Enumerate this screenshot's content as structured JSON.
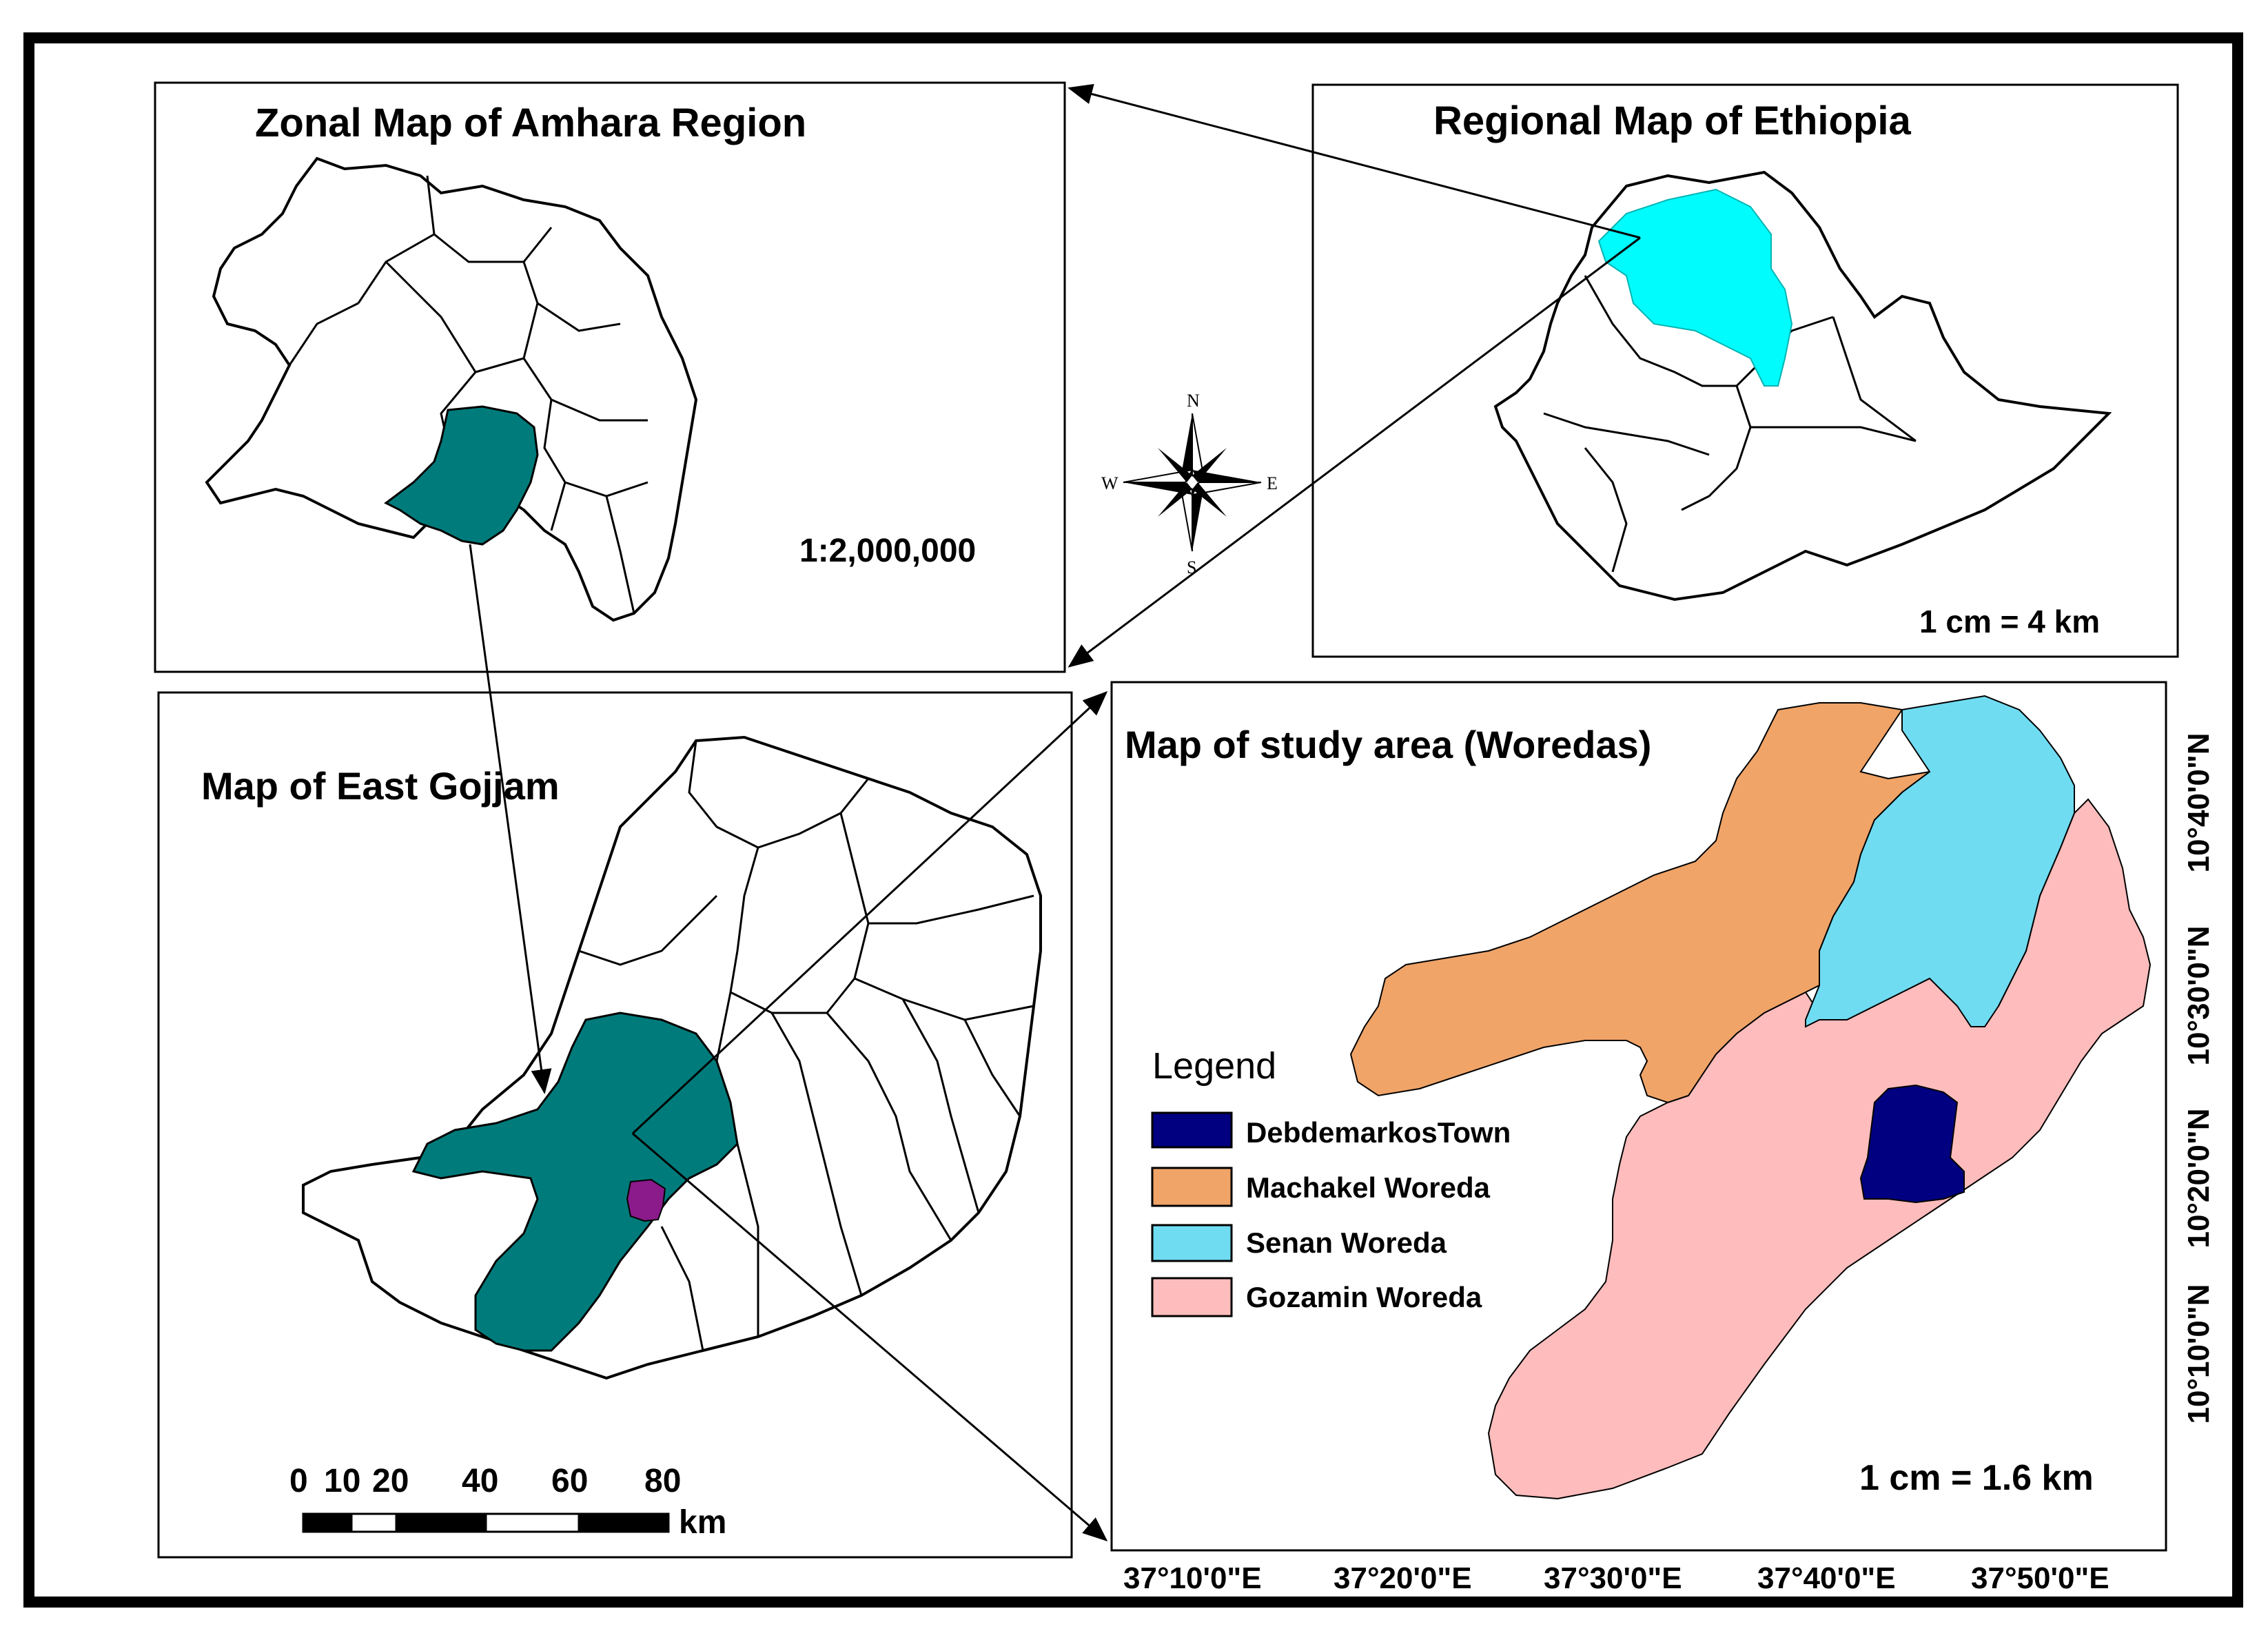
{
  "panels": {
    "zonal": {
      "title": "Zonal Map of Amhara Region",
      "scale": "1:2,000,000"
    },
    "regional": {
      "title": "Regional Map of Ethiopia",
      "scale": "1 cm = 4 km"
    },
    "east_gojjam": {
      "title": "Map of East Gojjam",
      "scalebar_labels": [
        "0",
        "10",
        "20",
        "40",
        "60",
        "80"
      ],
      "scalebar_unit": "km"
    },
    "study": {
      "title": "Map of study area (Woredas)",
      "scale": "1 cm = 1.6 km",
      "lon_ticks": [
        "37°10'0\"E",
        "37°20'0\"E",
        "37°30'0\"E",
        "37°40'0\"E",
        "37°50'0\"E"
      ],
      "lat_ticks": [
        "10°40'0\"N",
        "10°30'0\"N",
        "10°20'0\"N",
        "10°10'0\"N"
      ]
    }
  },
  "compass": {
    "n": "N",
    "e": "E",
    "s": "S",
    "w": "W"
  },
  "legend": {
    "title": "Legend",
    "items": [
      {
        "label": "DebdemarkosTown",
        "color": "#000080"
      },
      {
        "label": "Machakel Woreda",
        "color": "#f0a468"
      },
      {
        "label": "Senan Woreda",
        "color": "#70dcf2"
      },
      {
        "label": "Gozamin Woreda",
        "color": "#ffbcbc"
      }
    ]
  },
  "colors": {
    "amhara_highlight": "#00fcfc",
    "zone_highlight": "#007b7b",
    "town_highlight": "#8b1a8b",
    "outline": "#000000",
    "frame_border": "#000000"
  }
}
